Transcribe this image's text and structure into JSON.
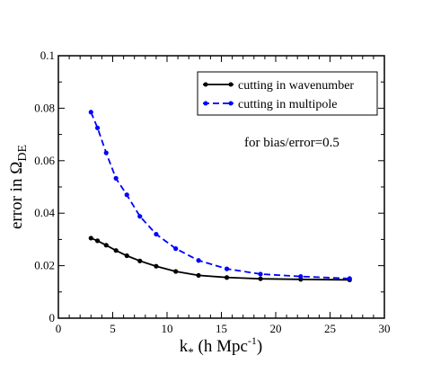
{
  "chart_data": {
    "type": "line",
    "xlabel_main": "k",
    "xlabel_sub": "*",
    "xlabel_units": " (h Mpc",
    "xlabel_exp": "-1",
    "xlabel_close": ")",
    "ylabel_main": "error in Ω",
    "ylabel_sub": "DE",
    "xlim": [
      0,
      30
    ],
    "ylim": [
      0,
      0.1
    ],
    "x_ticks": [
      "0",
      "5",
      "10",
      "15",
      "20",
      "25",
      "30"
    ],
    "y_ticks": [
      "0",
      "0.02",
      "0.04",
      "0.06",
      "0.08",
      "0.1"
    ],
    "annotation": "for bias/error=0.5",
    "legend_position": "top-right",
    "series": [
      {
        "name": "cutting in wavenumber",
        "color": "#000000",
        "style": "solid",
        "x": [
          3.0,
          3.6,
          4.4,
          5.3,
          6.3,
          7.5,
          9.0,
          10.8,
          12.9,
          15.5,
          18.6,
          22.3,
          26.8
        ],
        "y": [
          0.0305,
          0.0295,
          0.0278,
          0.0258,
          0.0238,
          0.0218,
          0.0198,
          0.0178,
          0.0163,
          0.0155,
          0.015,
          0.0148,
          0.0146
        ]
      },
      {
        "name": "cutting in multipole",
        "color": "#0000ff",
        "style": "dashed",
        "x": [
          3.0,
          3.6,
          4.4,
          5.3,
          6.3,
          7.5,
          9.0,
          10.8,
          12.9,
          15.5,
          18.6,
          22.3,
          26.8
        ],
        "y": [
          0.0785,
          0.0725,
          0.063,
          0.0533,
          0.047,
          0.0388,
          0.032,
          0.0265,
          0.022,
          0.0188,
          0.0168,
          0.0159,
          0.0151
        ]
      }
    ]
  }
}
